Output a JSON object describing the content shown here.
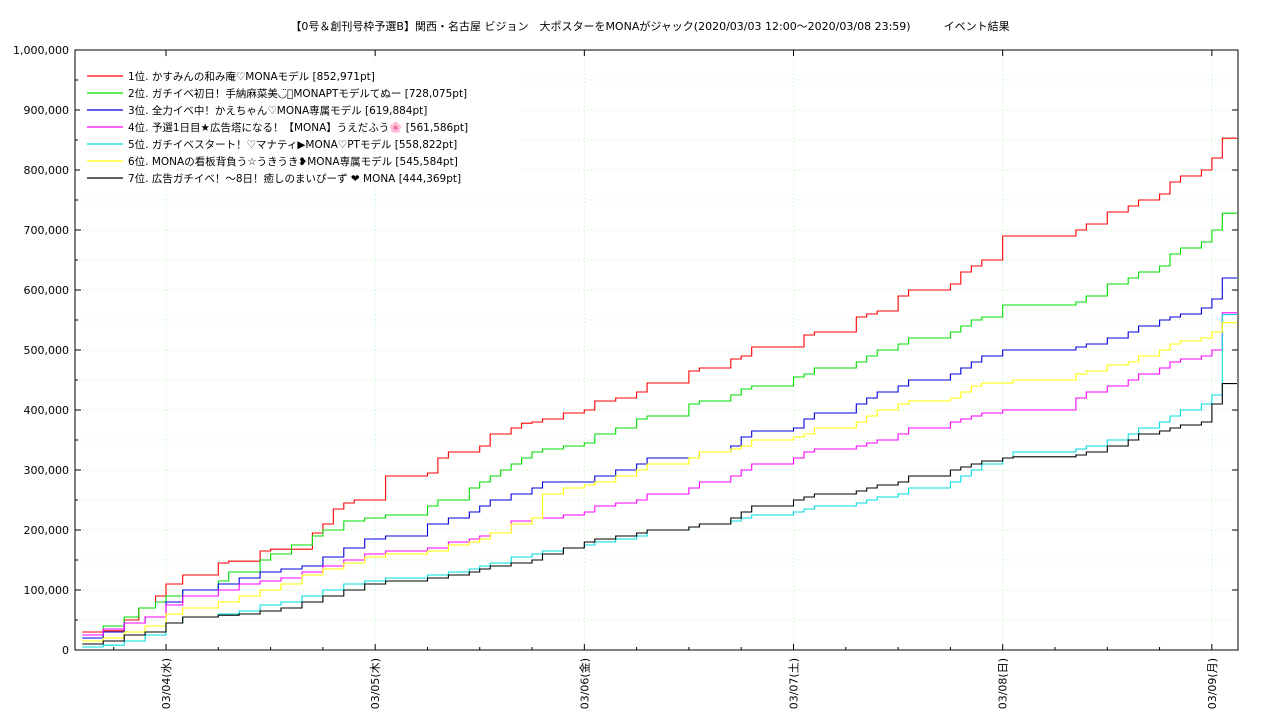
{
  "chart_data": {
    "type": "line",
    "title": "【0号＆創刊号枠予選B】関西・名古屋 ビジョン　大ポスターをMONAがジャック(2020/03/03 12:00〜2020/03/08 23:59)　　　イベント結果",
    "xlabel": "",
    "ylabel": "",
    "ylim": [
      0,
      1000000
    ],
    "yticks": [
      0,
      100000,
      200000,
      300000,
      400000,
      500000,
      600000,
      700000,
      800000,
      900000,
      1000000
    ],
    "ytick_labels": [
      "0",
      "100,000",
      "200,000",
      "300,000",
      "400,000",
      "500,000",
      "600,000",
      "700,000",
      "800,000",
      "900,000",
      "1,000,000"
    ],
    "xlim": [
      -0.435,
      5.125
    ],
    "xticks": [
      0,
      1,
      2,
      3,
      4,
      5
    ],
    "xtick_labels": [
      "03/04(水)",
      "03/05(木)",
      "03/06(金)",
      "03/07(土)",
      "03/08(日)",
      "03/09(月)"
    ],
    "x_unit": "days since 03/04 00:00",
    "grid": true,
    "legend_position": "top-left",
    "step": true,
    "series": [
      {
        "name": "1位. かすみんの和み庵♡MONAモデル [852,971pt]",
        "color": "#ff0000",
        "x": [
          -0.4,
          -0.3,
          -0.2,
          -0.13,
          -0.05,
          0.0,
          0.08,
          0.25,
          0.3,
          0.45,
          0.5,
          0.7,
          0.75,
          0.8,
          0.85,
          0.9,
          0.95,
          1.05,
          1.25,
          1.3,
          1.35,
          1.5,
          1.55,
          1.65,
          1.7,
          1.75,
          1.8,
          1.9,
          2.0,
          2.05,
          2.15,
          2.25,
          2.3,
          2.5,
          2.55,
          2.7,
          2.75,
          2.8,
          3.0,
          3.05,
          3.1,
          3.3,
          3.35,
          3.4,
          3.5,
          3.55,
          3.75,
          3.8,
          3.85,
          3.9,
          4.0,
          4.05,
          4.35,
          4.4,
          4.5,
          4.6,
          4.65,
          4.75,
          4.8,
          4.85,
          4.95,
          5.0,
          5.05,
          5.12
        ],
        "values": [
          30000,
          32000,
          50000,
          70000,
          90000,
          110000,
          125000,
          145000,
          148000,
          165000,
          168000,
          195000,
          210000,
          235000,
          245000,
          250000,
          250000,
          290000,
          295000,
          320000,
          330000,
          340000,
          360000,
          370000,
          378000,
          380000,
          385000,
          395000,
          400000,
          415000,
          420000,
          430000,
          445000,
          465000,
          470000,
          485000,
          490000,
          505000,
          505000,
          525000,
          530000,
          555000,
          560000,
          565000,
          590000,
          600000,
          610000,
          630000,
          640000,
          650000,
          690000,
          690000,
          700000,
          710000,
          730000,
          740000,
          750000,
          760000,
          780000,
          790000,
          800000,
          820000,
          853000,
          853000
        ]
      },
      {
        "name": "2位. ガチイベ初日！手納麻菜美◡̈⃝MONAPTモデルてぬー [728,075pt]",
        "color": "#00dd00",
        "x": [
          -0.4,
          -0.3,
          -0.2,
          -0.13,
          -0.05,
          0.0,
          0.08,
          0.25,
          0.3,
          0.45,
          0.5,
          0.6,
          0.7,
          0.75,
          0.85,
          0.95,
          1.05,
          1.25,
          1.3,
          1.45,
          1.5,
          1.55,
          1.6,
          1.65,
          1.7,
          1.75,
          1.8,
          1.9,
          2.0,
          2.05,
          2.15,
          2.25,
          2.3,
          2.5,
          2.55,
          2.7,
          2.75,
          2.8,
          3.0,
          3.05,
          3.1,
          3.3,
          3.35,
          3.4,
          3.5,
          3.55,
          3.75,
          3.8,
          3.85,
          3.9,
          4.0,
          4.05,
          4.35,
          4.4,
          4.5,
          4.6,
          4.65,
          4.75,
          4.8,
          4.85,
          4.95,
          5.0,
          5.05,
          5.12
        ],
        "values": [
          20000,
          40000,
          55000,
          70000,
          80000,
          90000,
          100000,
          115000,
          130000,
          150000,
          160000,
          175000,
          190000,
          200000,
          215000,
          220000,
          225000,
          240000,
          250000,
          270000,
          280000,
          290000,
          300000,
          310000,
          320000,
          330000,
          335000,
          340000,
          345000,
          360000,
          370000,
          385000,
          390000,
          410000,
          415000,
          425000,
          435000,
          440000,
          455000,
          460000,
          470000,
          480000,
          490000,
          500000,
          510000,
          520000,
          530000,
          540000,
          550000,
          555000,
          575000,
          575000,
          580000,
          590000,
          610000,
          620000,
          630000,
          640000,
          660000,
          670000,
          680000,
          700000,
          728000,
          728000
        ]
      },
      {
        "name": "3位. 全力イベ中！かえちゃん♡MONA専属モデル [619,884pt]",
        "color": "#0000dd",
        "x": [
          -0.4,
          -0.3,
          -0.2,
          -0.1,
          0.0,
          0.08,
          0.25,
          0.35,
          0.45,
          0.55,
          0.65,
          0.75,
          0.85,
          0.95,
          1.05,
          1.25,
          1.35,
          1.45,
          1.5,
          1.55,
          1.65,
          1.75,
          1.8,
          1.9,
          2.0,
          2.05,
          2.15,
          2.25,
          2.3,
          2.5,
          2.55,
          2.7,
          2.75,
          2.8,
          3.0,
          3.05,
          3.1,
          3.3,
          3.35,
          3.4,
          3.5,
          3.55,
          3.75,
          3.8,
          3.85,
          3.9,
          4.0,
          4.05,
          4.35,
          4.4,
          4.5,
          4.6,
          4.65,
          4.75,
          4.8,
          4.85,
          4.95,
          5.0,
          5.05,
          5.12
        ],
        "values": [
          20000,
          30000,
          45000,
          55000,
          80000,
          100000,
          110000,
          120000,
          130000,
          135000,
          140000,
          155000,
          170000,
          185000,
          190000,
          210000,
          220000,
          230000,
          240000,
          250000,
          260000,
          270000,
          280000,
          280000,
          280000,
          290000,
          300000,
          310000,
          320000,
          320000,
          330000,
          340000,
          355000,
          365000,
          370000,
          385000,
          395000,
          410000,
          420000,
          430000,
          440000,
          450000,
          460000,
          470000,
          480000,
          490000,
          500000,
          500000,
          505000,
          510000,
          520000,
          530000,
          540000,
          550000,
          555000,
          560000,
          570000,
          585000,
          620000,
          620000
        ]
      },
      {
        "name": "4位. 予選1日目★広告塔になる！【MONA】うえだふう🌸 [561,586pt]",
        "color": "#ff00ff",
        "x": [
          -0.4,
          -0.3,
          -0.2,
          -0.1,
          0.0,
          0.08,
          0.25,
          0.35,
          0.45,
          0.55,
          0.65,
          0.75,
          0.85,
          0.95,
          1.05,
          1.25,
          1.35,
          1.45,
          1.5,
          1.55,
          1.65,
          1.75,
          1.8,
          1.9,
          2.0,
          2.05,
          2.15,
          2.25,
          2.3,
          2.5,
          2.55,
          2.7,
          2.75,
          2.8,
          3.0,
          3.05,
          3.1,
          3.3,
          3.35,
          3.4,
          3.5,
          3.55,
          3.75,
          3.8,
          3.85,
          3.9,
          4.0,
          4.05,
          4.35,
          4.4,
          4.5,
          4.6,
          4.65,
          4.75,
          4.8,
          4.85,
          4.95,
          5.0,
          5.05,
          5.12
        ],
        "values": [
          25000,
          35000,
          45000,
          55000,
          75000,
          90000,
          100000,
          110000,
          115000,
          120000,
          130000,
          140000,
          150000,
          160000,
          165000,
          170000,
          180000,
          185000,
          190000,
          195000,
          215000,
          220000,
          220000,
          225000,
          230000,
          240000,
          245000,
          250000,
          260000,
          270000,
          280000,
          290000,
          300000,
          310000,
          320000,
          330000,
          335000,
          340000,
          345000,
          350000,
          360000,
          370000,
          380000,
          385000,
          390000,
          395000,
          400000,
          400000,
          420000,
          430000,
          440000,
          450000,
          460000,
          470000,
          480000,
          485000,
          490000,
          500000,
          562000,
          562000
        ]
      },
      {
        "name": "5位. ガチイベスタート！♡マナティ▶MONA♡PTモデル [558,822pt]",
        "color": "#00dddd",
        "x": [
          -0.4,
          -0.3,
          -0.2,
          -0.1,
          0.0,
          0.08,
          0.25,
          0.35,
          0.45,
          0.55,
          0.65,
          0.75,
          0.85,
          0.95,
          1.05,
          1.25,
          1.35,
          1.45,
          1.5,
          1.55,
          1.65,
          1.75,
          1.8,
          1.9,
          2.0,
          2.05,
          2.15,
          2.25,
          2.3,
          2.5,
          2.55,
          2.7,
          2.75,
          2.8,
          3.0,
          3.05,
          3.1,
          3.3,
          3.35,
          3.4,
          3.5,
          3.55,
          3.75,
          3.8,
          3.85,
          3.9,
          4.0,
          4.05,
          4.35,
          4.4,
          4.5,
          4.6,
          4.65,
          4.75,
          4.8,
          4.85,
          4.95,
          5.0,
          5.05,
          5.12
        ],
        "values": [
          5000,
          8000,
          15000,
          25000,
          45000,
          55000,
          60000,
          65000,
          75000,
          80000,
          90000,
          100000,
          110000,
          115000,
          120000,
          125000,
          130000,
          135000,
          140000,
          145000,
          155000,
          160000,
          165000,
          170000,
          175000,
          180000,
          185000,
          190000,
          200000,
          205000,
          210000,
          215000,
          220000,
          225000,
          230000,
          235000,
          240000,
          245000,
          250000,
          255000,
          260000,
          270000,
          280000,
          290000,
          300000,
          310000,
          320000,
          330000,
          335000,
          340000,
          350000,
          360000,
          370000,
          380000,
          390000,
          400000,
          410000,
          425000,
          559000,
          559000
        ]
      },
      {
        "name": "6位. MONAの看板背負う☆うきうき❥MONA専属モデル [545,584pt]",
        "color": "#ffff00",
        "x": [
          -0.4,
          -0.3,
          -0.2,
          -0.1,
          0.0,
          0.08,
          0.25,
          0.35,
          0.45,
          0.55,
          0.65,
          0.75,
          0.85,
          0.95,
          1.05,
          1.25,
          1.35,
          1.45,
          1.5,
          1.55,
          1.65,
          1.75,
          1.8,
          1.9,
          2.0,
          2.05,
          2.15,
          2.25,
          2.3,
          2.5,
          2.55,
          2.7,
          2.75,
          2.8,
          3.0,
          3.05,
          3.1,
          3.3,
          3.35,
          3.4,
          3.5,
          3.55,
          3.75,
          3.8,
          3.85,
          3.9,
          4.0,
          4.05,
          4.35,
          4.4,
          4.5,
          4.6,
          4.65,
          4.75,
          4.8,
          4.85,
          4.95,
          5.0,
          5.05,
          5.12
        ],
        "values": [
          15000,
          20000,
          30000,
          40000,
          60000,
          70000,
          80000,
          90000,
          100000,
          110000,
          125000,
          135000,
          145000,
          155000,
          160000,
          165000,
          175000,
          180000,
          185000,
          195000,
          210000,
          220000,
          260000,
          270000,
          275000,
          280000,
          290000,
          300000,
          310000,
          320000,
          330000,
          335000,
          340000,
          350000,
          355000,
          360000,
          370000,
          380000,
          390000,
          400000,
          410000,
          415000,
          420000,
          430000,
          440000,
          445000,
          445000,
          450000,
          460000,
          465000,
          475000,
          480000,
          490000,
          500000,
          510000,
          515000,
          520000,
          530000,
          545500,
          545500
        ]
      },
      {
        "name": "7位. 広告ガチイベ！〜8日！癒しのまいぴーず ❤ MONA [444,369pt]",
        "color": "#000000",
        "x": [
          -0.4,
          -0.3,
          -0.2,
          -0.1,
          0.0,
          0.08,
          0.25,
          0.35,
          0.45,
          0.55,
          0.65,
          0.75,
          0.85,
          0.95,
          1.05,
          1.25,
          1.35,
          1.45,
          1.5,
          1.55,
          1.65,
          1.75,
          1.8,
          1.9,
          2.0,
          2.05,
          2.15,
          2.25,
          2.3,
          2.5,
          2.55,
          2.7,
          2.75,
          2.8,
          3.0,
          3.05,
          3.1,
          3.3,
          3.35,
          3.4,
          3.5,
          3.55,
          3.75,
          3.8,
          3.85,
          3.9,
          4.0,
          4.05,
          4.35,
          4.4,
          4.5,
          4.6,
          4.65,
          4.75,
          4.8,
          4.85,
          4.95,
          5.0,
          5.05,
          5.12
        ],
        "values": [
          10000,
          15000,
          25000,
          30000,
          45000,
          55000,
          58000,
          60000,
          65000,
          70000,
          80000,
          90000,
          100000,
          110000,
          115000,
          120000,
          125000,
          130000,
          135000,
          140000,
          145000,
          150000,
          160000,
          170000,
          180000,
          185000,
          190000,
          195000,
          200000,
          205000,
          210000,
          220000,
          230000,
          240000,
          250000,
          255000,
          260000,
          265000,
          270000,
          275000,
          280000,
          290000,
          300000,
          305000,
          310000,
          315000,
          320000,
          322000,
          325000,
          330000,
          340000,
          350000,
          360000,
          365000,
          370000,
          375000,
          380000,
          410000,
          444000,
          444000
        ]
      }
    ]
  }
}
